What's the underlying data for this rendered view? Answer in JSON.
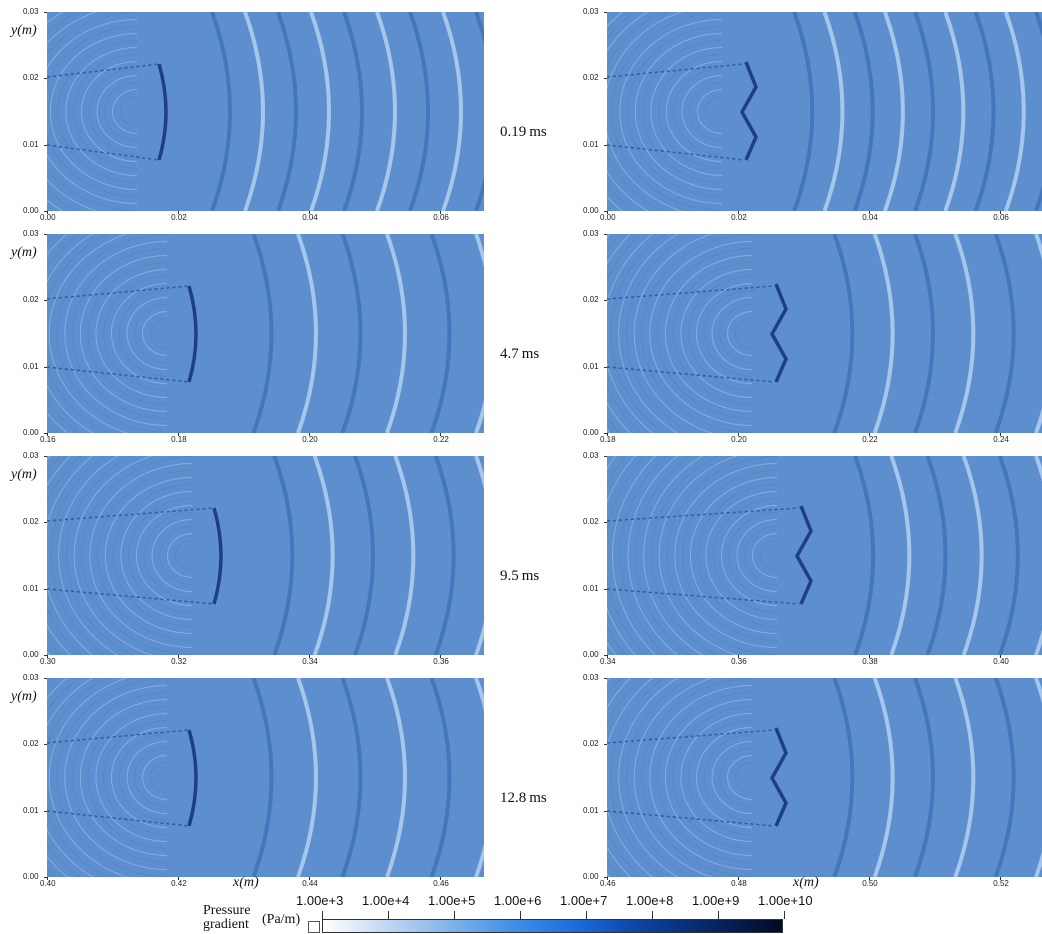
{
  "colors": {
    "field_base": "#5d8fcf",
    "field_dark": "#1f3f85",
    "field_light": "#b9d3f2"
  },
  "y_axis": {
    "label": "y(m)",
    "ticks": [
      "0.00",
      "0.01",
      "0.02",
      "0.03"
    ]
  },
  "x_axis_label": "x(m)",
  "rows": [
    {
      "time": "0.19 ms",
      "left": {
        "xticks": [
          "0.00",
          "0.02",
          "0.04",
          "0.06"
        ]
      },
      "right": {
        "xticks": [
          "0.00",
          "0.02",
          "0.04",
          "0.06"
        ]
      }
    },
    {
      "time": "4.7 ms",
      "left": {
        "xticks": [
          "0.16",
          "0.18",
          "0.20",
          "0.22"
        ]
      },
      "right": {
        "xticks": [
          "0.18",
          "0.20",
          "0.22",
          "0.24"
        ]
      }
    },
    {
      "time": "9.5 ms",
      "left": {
        "xticks": [
          "0.30",
          "0.32",
          "0.34",
          "0.36"
        ]
      },
      "right": {
        "xticks": [
          "0.34",
          "0.36",
          "0.38",
          "0.40"
        ]
      }
    },
    {
      "time": "12.8 ms",
      "left": {
        "xticks": [
          "0.40",
          "0.42",
          "0.44",
          "0.46"
        ]
      },
      "right": {
        "xticks": [
          "0.46",
          "0.48",
          "0.50",
          "0.52"
        ]
      }
    }
  ],
  "colorbar": {
    "title_line1": "Pressure",
    "title_line2": "gradient",
    "unit": "(Pa/m)",
    "ticks": [
      "1.00e+3",
      "1.00e+4",
      "1.00e+5",
      "1.00e+6",
      "1.00e+7",
      "1.00e+8",
      "1.00e+9",
      "1.00e+10"
    ]
  }
}
